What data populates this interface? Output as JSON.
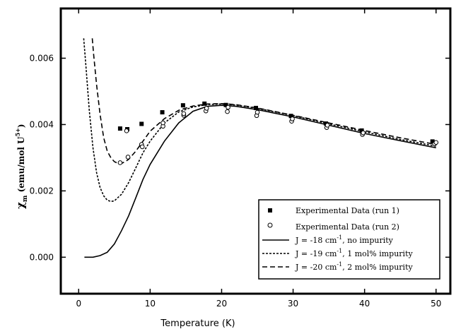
{
  "chart_data": {
    "type": "scatter",
    "xlabel": "Temperature (K)",
    "ylabel": {
      "main": "χ",
      "sub": "m",
      "rest_before": " (emu/mol U",
      "sup": "5+",
      "rest_after": ")"
    },
    "xlim": [
      -2.5,
      52
    ],
    "ylim": [
      -0.0011,
      0.0075
    ],
    "xticks": [
      0,
      10,
      20,
      30,
      40,
      50
    ],
    "xtick_labels": [
      "0",
      "10",
      "20",
      "30",
      "40",
      "50"
    ],
    "yticks": [
      0.0,
      0.002,
      0.004,
      0.006
    ],
    "ytick_labels": [
      "0.000",
      "0.002",
      "0.004",
      "0.006"
    ],
    "grid": false,
    "legend_position": "bottom-right",
    "legend": [
      {
        "marker": "square",
        "text": "Experimental Data (run 1)"
      },
      {
        "marker": "circle",
        "text": "Experimental Data (run 2)"
      },
      {
        "line": "solid",
        "text_pre": "J = -18 cm",
        "sup": "-1",
        "text_post": ", no impurity"
      },
      {
        "line": "dotted",
        "text_pre": "J = -19 cm",
        "sup": "-1",
        "text_post": ", 1 mol% impurity"
      },
      {
        "line": "dashed",
        "text_pre": "J = -20 cm",
        "sup": "-1",
        "text_post": ", 2 mol% impurity"
      }
    ],
    "series": [
      {
        "kind": "points",
        "marker": "square",
        "x": [
          5.8,
          6.8,
          8.8,
          11.7,
          14.6,
          17.6,
          20.6,
          24.8,
          29.7,
          34.6,
          39.6,
          49.5
        ],
        "y": [
          0.00388,
          0.00386,
          0.00402,
          0.00437,
          0.00458,
          0.00463,
          0.00459,
          0.0045,
          0.00426,
          0.00403,
          0.00382,
          0.00349
        ]
      },
      {
        "kind": "points",
        "marker": "circle",
        "x": [
          5.8,
          6.9,
          8.8,
          11.8,
          14.7,
          17.8,
          20.8,
          24.9,
          29.8,
          34.7,
          39.7,
          49.8
        ],
        "y": [
          0.00285,
          0.00302,
          0.0034,
          0.00395,
          0.00428,
          0.00441,
          0.00439,
          0.00427,
          0.0041,
          0.00391,
          0.0037,
          0.00342
        ]
      },
      {
        "kind": "points",
        "marker": "circle",
        "x": [
          6.7,
          8.9,
          11.8,
          14.7,
          17.9,
          20.9,
          25.0,
          29.9,
          34.8,
          39.8,
          50.0
        ],
        "y": [
          0.00381,
          0.00333,
          0.00405,
          0.00433,
          0.00449,
          0.00452,
          0.00437,
          0.00417,
          0.00398,
          0.00375,
          0.00346
        ]
      },
      {
        "kind": "line",
        "style": "solid",
        "x": [
          0.8,
          2,
          3,
          4,
          5,
          6,
          7,
          8,
          9,
          10,
          12,
          14,
          16,
          18,
          20,
          22,
          25,
          30,
          35,
          40,
          45,
          50
        ],
        "y": [
          0.0,
          0.0,
          5e-05,
          0.00015,
          0.0004,
          0.0008,
          0.00125,
          0.0018,
          0.00235,
          0.0028,
          0.0035,
          0.00405,
          0.0044,
          0.00455,
          0.00458,
          0.00455,
          0.00445,
          0.00423,
          0.00398,
          0.00373,
          0.00351,
          0.0033
        ]
      },
      {
        "kind": "line",
        "style": "dotted",
        "x": [
          0.7,
          1.0,
          1.5,
          2.0,
          2.5,
          3.0,
          3.5,
          4.0,
          4.5,
          5.0,
          6.0,
          7.0,
          8.0,
          9.0,
          10,
          12,
          14,
          16,
          18,
          20,
          22,
          25,
          30,
          35,
          40,
          45,
          50
        ],
        "y": [
          0.0066,
          0.0058,
          0.0044,
          0.0033,
          0.00255,
          0.0021,
          0.00185,
          0.00172,
          0.00168,
          0.0017,
          0.0019,
          0.00225,
          0.0027,
          0.00315,
          0.0035,
          0.00405,
          0.00438,
          0.00453,
          0.0046,
          0.00462,
          0.00459,
          0.00449,
          0.00427,
          0.00402,
          0.00378,
          0.00355,
          0.00335
        ]
      },
      {
        "kind": "line",
        "style": "dashed",
        "x": [
          1.9,
          2.1,
          2.5,
          3.0,
          3.5,
          4.0,
          4.5,
          5.0,
          5.5,
          6.0,
          6.5,
          7.0,
          8.0,
          9.0,
          10,
          12,
          14,
          16,
          18,
          20,
          22,
          25,
          30,
          35,
          40,
          45,
          50
        ],
        "y": [
          0.0066,
          0.0061,
          0.0052,
          0.0043,
          0.0036,
          0.0032,
          0.003,
          0.00288,
          0.00283,
          0.00283,
          0.00288,
          0.00295,
          0.0032,
          0.0035,
          0.0038,
          0.00418,
          0.00443,
          0.00456,
          0.00462,
          0.00463,
          0.0046,
          0.0045,
          0.00428,
          0.00405,
          0.00382,
          0.0036,
          0.0034
        ]
      }
    ]
  }
}
